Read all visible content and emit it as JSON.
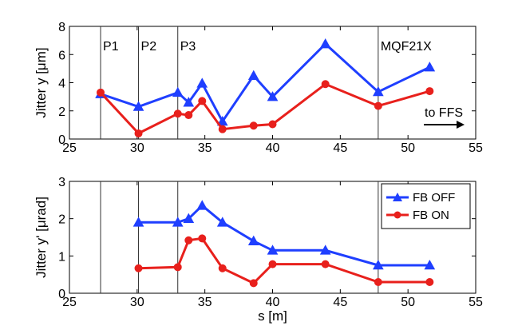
{
  "chart_data": [
    {
      "type": "line",
      "ylabel": "Jitter y [μm]",
      "xlabel": "",
      "xlim": [
        25,
        55
      ],
      "ylim": [
        0,
        8
      ],
      "xticks": [
        "25",
        "30",
        "35",
        "40",
        "45",
        "50",
        "55"
      ],
      "yticks": [
        "0",
        "2",
        "4",
        "6",
        "8"
      ],
      "series": [
        {
          "name": "FB OFF",
          "color": "#1f3fff",
          "marker": "triangle",
          "x": [
            27.3,
            30.1,
            33.0,
            33.8,
            34.8,
            36.3,
            38.6,
            40.0,
            43.9,
            47.8,
            51.6
          ],
          "y": [
            3.2,
            2.3,
            3.3,
            2.6,
            3.95,
            1.25,
            4.5,
            3.0,
            6.75,
            3.35,
            5.1
          ]
        },
        {
          "name": "FB ON",
          "color": "#e8201c",
          "marker": "circle",
          "x": [
            27.3,
            30.1,
            33.0,
            33.8,
            34.8,
            36.3,
            38.6,
            40.0,
            43.9,
            47.8,
            51.6
          ],
          "y": [
            3.3,
            0.4,
            1.8,
            1.7,
            2.7,
            0.7,
            0.95,
            1.05,
            3.9,
            2.35,
            3.4
          ]
        }
      ],
      "vlines": [
        {
          "x": 27.3,
          "label": "P1"
        },
        {
          "x": 30.1,
          "label": "P2"
        },
        {
          "x": 33.0,
          "label": "P3"
        },
        {
          "x": 47.8,
          "label": "MQF21X"
        }
      ],
      "annotation": "to FFS"
    },
    {
      "type": "line",
      "ylabel": "Jitter y' [μrad]",
      "xlabel": "s [m]",
      "xlim": [
        25,
        55
      ],
      "ylim": [
        0,
        3
      ],
      "xticks": [
        "25",
        "30",
        "35",
        "40",
        "45",
        "50",
        "55"
      ],
      "yticks": [
        "0",
        "1",
        "2",
        "3"
      ],
      "series": [
        {
          "name": "FB OFF",
          "color": "#1f3fff",
          "marker": "triangle",
          "x": [
            30.1,
            33.0,
            33.8,
            34.8,
            36.3,
            38.6,
            40.0,
            43.9,
            47.8,
            51.6
          ],
          "y": [
            1.9,
            1.9,
            2.0,
            2.35,
            1.9,
            1.4,
            1.15,
            1.15,
            0.75,
            0.75
          ]
        },
        {
          "name": "FB ON",
          "color": "#e8201c",
          "marker": "circle",
          "x": [
            30.1,
            33.0,
            33.8,
            34.8,
            36.3,
            38.6,
            40.0,
            43.9,
            47.8,
            51.6
          ],
          "y": [
            0.67,
            0.7,
            1.42,
            1.47,
            0.67,
            0.27,
            0.78,
            0.78,
            0.3,
            0.3
          ]
        }
      ],
      "vlines": [
        {
          "x": 27.3
        },
        {
          "x": 30.1
        },
        {
          "x": 33.0
        },
        {
          "x": 47.8
        }
      ],
      "legend": {
        "position": "top-right",
        "entries": [
          "FB OFF",
          "FB ON"
        ]
      }
    }
  ]
}
